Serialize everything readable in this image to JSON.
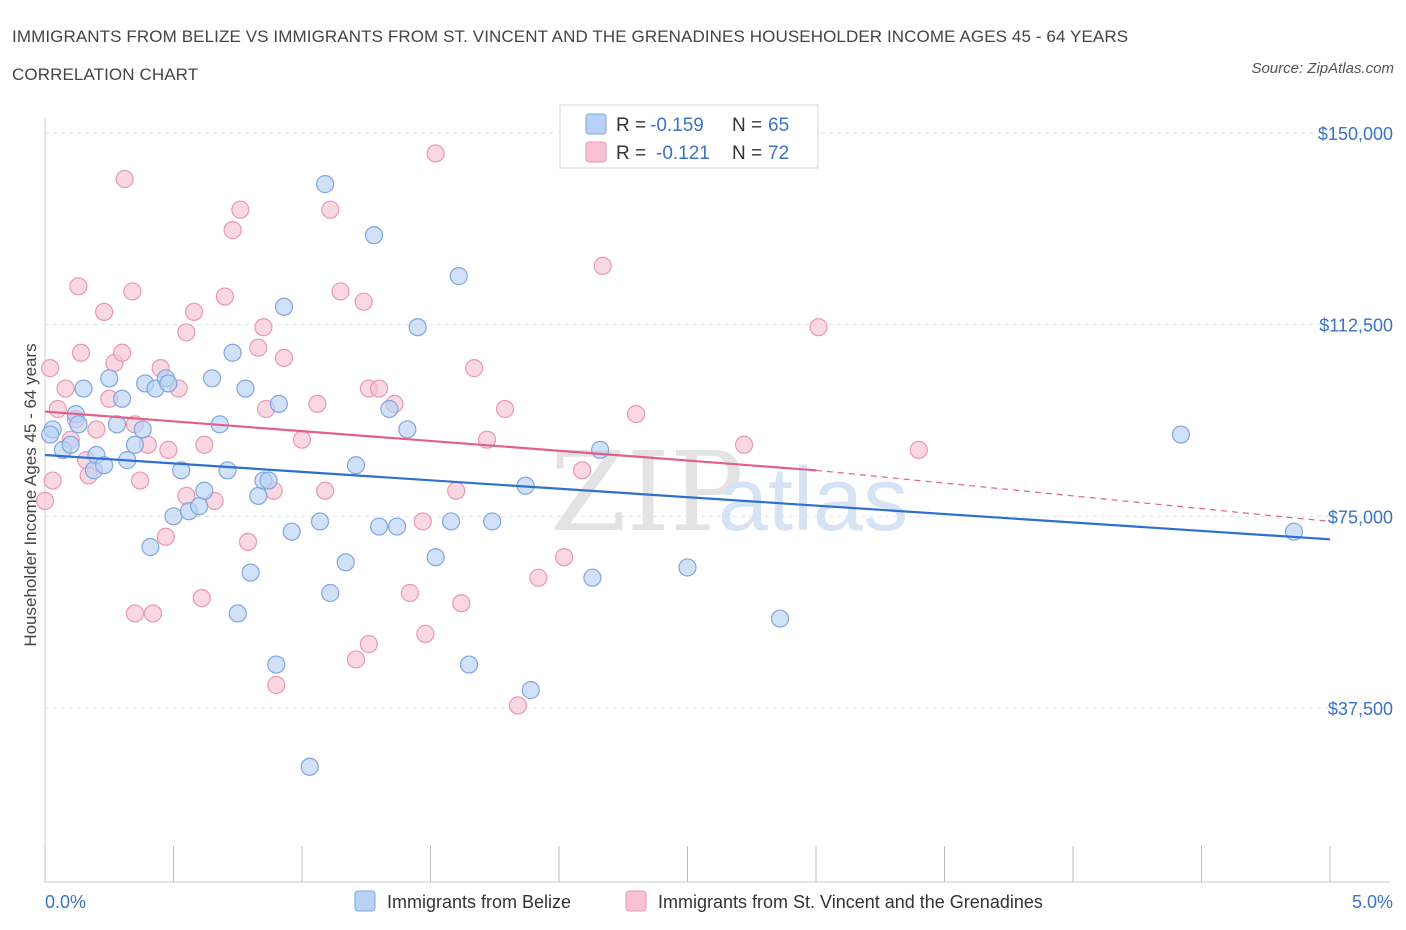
{
  "title": "IMMIGRANTS FROM BELIZE VS IMMIGRANTS FROM ST. VINCENT AND THE GRENADINES HOUSEHOLDER INCOME AGES 45 - 64 YEARS CORRELATION CHART",
  "source": "Source: ZipAtlas.com",
  "watermark": {
    "zip": "ZIP",
    "atlas": "atlas"
  },
  "colors": {
    "blue_fill": "#b9d1f4",
    "blue_stroke": "#7fa6e0",
    "blue_line": "#2f6fd0",
    "pink_fill": "#f7c3d3",
    "pink_stroke": "#ec97b2",
    "pink_line": "#e0608a",
    "grid": "#dde3ec",
    "axis_label": "#3b73c4"
  },
  "legend": {
    "rows": [
      {
        "r_label": "R =",
        "r_value": "-0.159",
        "n_label": "N =",
        "n_value": "65",
        "color": "blue"
      },
      {
        "r_label": "R =",
        "r_value": "-0.121",
        "n_label": "N =",
        "n_value": "72",
        "color": "pink"
      }
    ]
  },
  "chart_data": {
    "type": "scatter",
    "title": "IMMIGRANTS FROM BELIZE VS IMMIGRANTS FROM ST. VINCENT AND THE GRENADINES HOUSEHOLDER INCOME AGES 45 - 64 YEARS CORRELATION CHART",
    "xlabel": "",
    "ylabel": "Householder Income Ages 45 - 64 years",
    "xlim": [
      0,
      5
    ],
    "ylim": [
      0,
      150000
    ],
    "x_tick_labels": [
      "0.0%",
      "5.0%"
    ],
    "y_tick_labels": [
      "$150,000",
      "$112,500",
      "$75,000",
      "$37,500"
    ],
    "y_ticks": [
      150000,
      112500,
      75000,
      37500
    ],
    "grid": true,
    "legend_position": "bottom",
    "series": [
      {
        "name": "Immigrants from Belize",
        "color": "blue",
        "trend": {
          "x0": 0.0,
          "y0": 87000,
          "x1": 5.0,
          "y1": 70500
        },
        "points": [
          [
            0.03,
            92000
          ],
          [
            0.07,
            88000
          ],
          [
            0.1,
            89000
          ],
          [
            0.12,
            95000
          ],
          [
            0.13,
            93000
          ],
          [
            0.15,
            100000
          ],
          [
            0.19,
            84000
          ],
          [
            0.2,
            87000
          ],
          [
            0.25,
            102000
          ],
          [
            0.28,
            93000
          ],
          [
            0.3,
            98000
          ],
          [
            0.32,
            86000
          ],
          [
            0.35,
            89000
          ],
          [
            0.38,
            92000
          ],
          [
            0.39,
            101000
          ],
          [
            0.43,
            100000
          ],
          [
            0.47,
            102000
          ],
          [
            0.48,
            101000
          ],
          [
            0.5,
            75000
          ],
          [
            0.53,
            84000
          ],
          [
            0.56,
            76000
          ],
          [
            0.62,
            80000
          ],
          [
            0.65,
            102000
          ],
          [
            0.68,
            93000
          ],
          [
            0.71,
            84000
          ],
          [
            0.73,
            107000
          ],
          [
            0.78,
            100000
          ],
          [
            0.8,
            64000
          ],
          [
            0.83,
            79000
          ],
          [
            0.85,
            82000
          ],
          [
            0.87,
            82000
          ],
          [
            0.91,
            97000
          ],
          [
            0.93,
            116000
          ],
          [
            0.96,
            72000
          ],
          [
            1.03,
            26000
          ],
          [
            1.07,
            74000
          ],
          [
            1.09,
            140000
          ],
          [
            1.11,
            60000
          ],
          [
            1.17,
            66000
          ],
          [
            1.21,
            85000
          ],
          [
            1.28,
            130000
          ],
          [
            1.3,
            73000
          ],
          [
            1.34,
            96000
          ],
          [
            1.37,
            73000
          ],
          [
            1.41,
            92000
          ],
          [
            1.45,
            112000
          ],
          [
            1.52,
            67000
          ],
          [
            1.58,
            74000
          ],
          [
            1.61,
            122000
          ],
          [
            1.65,
            46000
          ],
          [
            1.74,
            74000
          ],
          [
            1.87,
            81000
          ],
          [
            1.89,
            41000
          ],
          [
            2.13,
            63000
          ],
          [
            2.16,
            88000
          ],
          [
            2.5,
            65000
          ],
          [
            2.86,
            55000
          ],
          [
            0.23,
            85000
          ],
          [
            0.41,
            69000
          ],
          [
            0.6,
            77000
          ],
          [
            0.75,
            56000
          ],
          [
            0.9,
            46000
          ],
          [
            4.42,
            91000
          ],
          [
            4.86,
            72000
          ],
          [
            0.02,
            91000
          ]
        ]
      },
      {
        "name": "Immigrants from St. Vincent and the Grenadines",
        "color": "pink",
        "trend": {
          "x0": 0.0,
          "y0": 95500,
          "x1": 3.0,
          "y1": 84000,
          "dash_to": {
            "x": 5.0,
            "y": 74000
          }
        },
        "points": [
          [
            0.02,
            104000
          ],
          [
            0.05,
            96000
          ],
          [
            0.08,
            100000
          ],
          [
            0.1,
            90000
          ],
          [
            0.12,
            94000
          ],
          [
            0.13,
            120000
          ],
          [
            0.14,
            107000
          ],
          [
            0.16,
            86000
          ],
          [
            0.17,
            83000
          ],
          [
            0.2,
            92000
          ],
          [
            0.23,
            115000
          ],
          [
            0.25,
            98000
          ],
          [
            0.27,
            105000
          ],
          [
            0.3,
            107000
          ],
          [
            0.31,
            141000
          ],
          [
            0.34,
            119000
          ],
          [
            0.35,
            93000
          ],
          [
            0.37,
            82000
          ],
          [
            0.4,
            89000
          ],
          [
            0.42,
            56000
          ],
          [
            0.45,
            104000
          ],
          [
            0.48,
            88000
          ],
          [
            0.52,
            100000
          ],
          [
            0.55,
            79000
          ],
          [
            0.58,
            115000
          ],
          [
            0.62,
            89000
          ],
          [
            0.66,
            78000
          ],
          [
            0.7,
            118000
          ],
          [
            0.73,
            131000
          ],
          [
            0.76,
            135000
          ],
          [
            0.79,
            70000
          ],
          [
            0.83,
            108000
          ],
          [
            0.86,
            96000
          ],
          [
            0.89,
            80000
          ],
          [
            0.93,
            106000
          ],
          [
            1.0,
            90000
          ],
          [
            1.06,
            97000
          ],
          [
            1.09,
            80000
          ],
          [
            1.11,
            135000
          ],
          [
            1.15,
            119000
          ],
          [
            1.24,
            117000
          ],
          [
            1.26,
            100000
          ],
          [
            1.3,
            100000
          ],
          [
            1.36,
            97000
          ],
          [
            1.42,
            60000
          ],
          [
            1.47,
            74000
          ],
          [
            1.52,
            146000
          ],
          [
            1.6,
            80000
          ],
          [
            1.67,
            104000
          ],
          [
            1.72,
            90000
          ],
          [
            1.79,
            96000
          ],
          [
            1.84,
            38000
          ],
          [
            1.92,
            63000
          ],
          [
            2.02,
            67000
          ],
          [
            2.09,
            84000
          ],
          [
            2.17,
            124000
          ],
          [
            2.3,
            95000
          ],
          [
            2.72,
            89000
          ],
          [
            3.01,
            112000
          ],
          [
            3.4,
            88000
          ],
          [
            0.9,
            42000
          ],
          [
            1.26,
            50000
          ],
          [
            0.61,
            59000
          ],
          [
            1.62,
            58000
          ],
          [
            1.48,
            52000
          ],
          [
            0.35,
            56000
          ],
          [
            0.03,
            82000
          ],
          [
            1.21,
            47000
          ],
          [
            0.0,
            78000
          ],
          [
            0.47,
            71000
          ],
          [
            0.85,
            112000
          ],
          [
            0.55,
            111000
          ]
        ]
      }
    ]
  },
  "bottom_legend": [
    {
      "label": "Immigrants from Belize",
      "color": "blue"
    },
    {
      "label": "Immigrants from St. Vincent and the Grenadines",
      "color": "pink"
    }
  ]
}
